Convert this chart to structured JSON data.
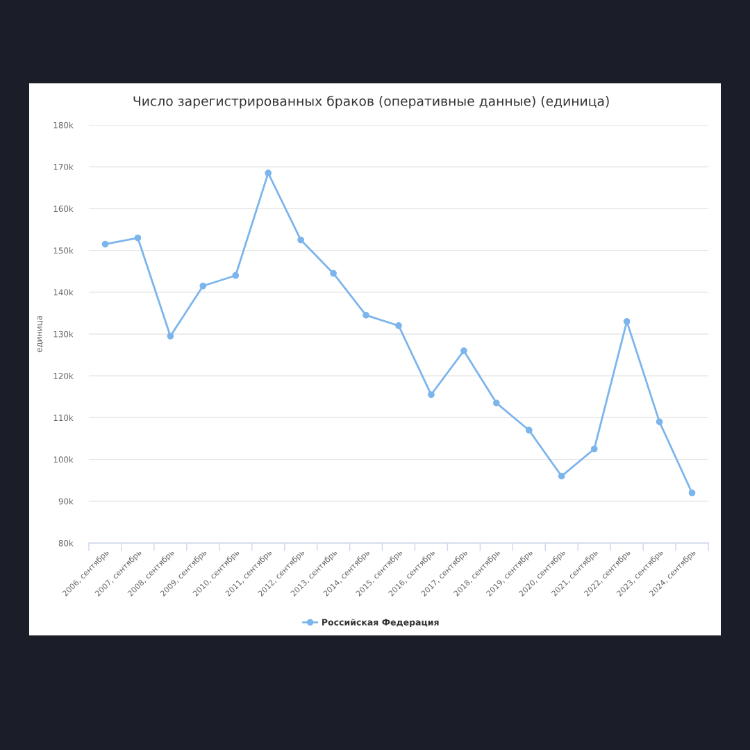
{
  "chart_data": {
    "type": "line",
    "title": "Число зарегистрированных браков (оперативные данные) (единица)",
    "ylabel": "единица",
    "categories": [
      "2006, сентябрь",
      "2007, сентябрь",
      "2008, сентябрь",
      "2009, сентябрь",
      "2010, сентябрь",
      "2011, сентябрь",
      "2012, сентябрь",
      "2013, сентябрь",
      "2014, сентябрь",
      "2015, сентябрь",
      "2016, сентябрь",
      "2017, сентябрь",
      "2018, сентябрь",
      "2019, сентябрь",
      "2020, сентябрь",
      "2021, сентябрь",
      "2022, сентябрь",
      "2023, сентябрь",
      "2024, сентябрь"
    ],
    "series": [
      {
        "name": "Российская Федерация",
        "color": "#7cb5ec",
        "values": [
          151500,
          153000,
          129500,
          141500,
          144000,
          168500,
          152500,
          144500,
          134500,
          132000,
          115500,
          126000,
          113500,
          107000,
          96000,
          102500,
          133000,
          109000,
          92000
        ]
      }
    ],
    "ylim": [
      80000,
      180000
    ],
    "yticks": [
      {
        "value": 80000,
        "label": "80k"
      },
      {
        "value": 90000,
        "label": "90k"
      },
      {
        "value": 100000,
        "label": "100k"
      },
      {
        "value": 110000,
        "label": "110k"
      },
      {
        "value": 120000,
        "label": "120k"
      },
      {
        "value": 130000,
        "label": "130k"
      },
      {
        "value": 140000,
        "label": "140k"
      },
      {
        "value": 150000,
        "label": "150k"
      },
      {
        "value": 160000,
        "label": "160k"
      },
      {
        "value": 170000,
        "label": "170k"
      },
      {
        "value": 180000,
        "label": "180k"
      }
    ],
    "grid": "y",
    "legend": "bottom",
    "marker": "circle",
    "line_style": "solid"
  }
}
